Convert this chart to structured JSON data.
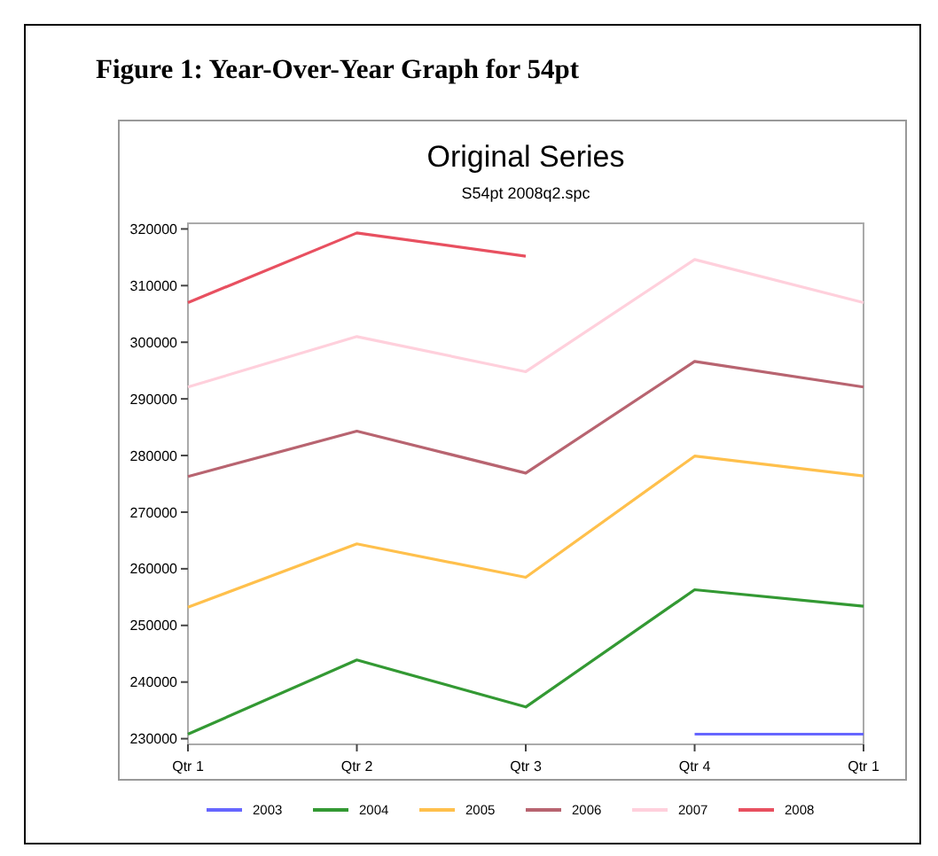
{
  "chart_data": {
    "type": "line",
    "title": "Original Series",
    "subtitle": "S54pt 2008q2.spc",
    "annotations": [
      "Figure 1: Year-Over-Year Graph for 54pt"
    ],
    "categories": [
      "Qtr 1",
      "Qtr 2",
      "Qtr 3",
      "Qtr 4",
      "Qtr 1"
    ],
    "series": [
      {
        "name": "2003",
        "color": "#6666ff",
        "values": [
          null,
          null,
          null,
          230800,
          230800
        ]
      },
      {
        "name": "2004",
        "color": "#339933",
        "values": [
          230800,
          243900,
          235600,
          256300,
          253400
        ]
      },
      {
        "name": "2005",
        "color": "#ffc04c",
        "values": [
          253200,
          264400,
          258500,
          279900,
          276400
        ]
      },
      {
        "name": "2006",
        "color": "#b86470",
        "values": [
          276300,
          284300,
          276900,
          296600,
          292100
        ]
      },
      {
        "name": "2007",
        "color": "#ffd0dc",
        "values": [
          292100,
          301000,
          294800,
          314600,
          307000
        ]
      },
      {
        "name": "2008",
        "color": "#e85060",
        "values": [
          307000,
          319300,
          315200,
          null,
          null
        ]
      }
    ],
    "ylim": [
      229000,
      321000
    ],
    "yticks": [
      230000,
      240000,
      250000,
      260000,
      270000,
      280000,
      290000,
      300000,
      310000,
      320000
    ],
    "legend": "bottom",
    "grid": false,
    "marker": "none",
    "line_style": "solid"
  }
}
